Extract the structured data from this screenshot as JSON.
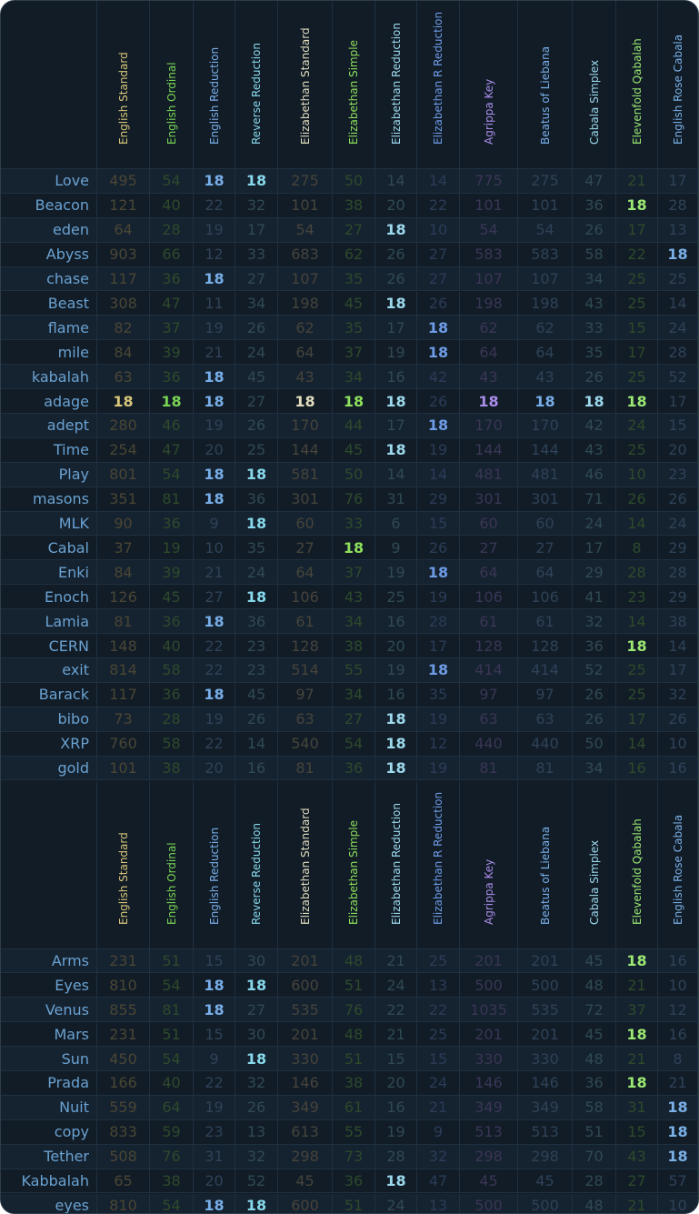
{
  "columns": [
    {
      "name": "English Standard",
      "color": "#d9c67a",
      "dim": "#4a4634"
    },
    {
      "name": "English Ordinal",
      "color": "#79d455",
      "dim": "#2e4a2b"
    },
    {
      "name": "English Reduction",
      "color": "#78aee8",
      "dim": "#2f4257"
    },
    {
      "name": "Reverse Reduction",
      "color": "#86d8ea",
      "dim": "#304a52"
    },
    {
      "name": "Elizabethan Standard",
      "color": "#e2ddbd",
      "dim": "#46443b"
    },
    {
      "name": "Elizabethan Simple",
      "color": "#8ee05c",
      "dim": "#2e4a2b"
    },
    {
      "name": "Elizabethan Reduction",
      "color": "#9cd9ec",
      "dim": "#304a52"
    },
    {
      "name": "Elizabethan R Reduction",
      "color": "#6e9be5",
      "dim": "#2c3c57"
    },
    {
      "name": "Agrippa Key",
      "color": "#a98ce8",
      "dim": "#3a3655"
    },
    {
      "name": "Beatus of Liebana",
      "color": "#78aee8",
      "dim": "#2f4257"
    },
    {
      "name": "Cabala Simplex",
      "color": "#9cd9ec",
      "dim": "#304a52"
    },
    {
      "name": "Elevenfold Qabalah",
      "color": "#9be872",
      "dim": "#2e4a2b"
    },
    {
      "name": "English Rose Cabala",
      "color": "#7ab0e6",
      "dim": "#2f4257"
    }
  ],
  "section1": [
    {
      "word": "Love",
      "values": [
        495,
        54,
        18,
        18,
        275,
        50,
        14,
        14,
        775,
        275,
        47,
        21,
        17
      ]
    },
    {
      "word": "Beacon",
      "values": [
        121,
        40,
        22,
        32,
        101,
        38,
        20,
        22,
        101,
        101,
        36,
        18,
        28
      ]
    },
    {
      "word": "eden",
      "values": [
        64,
        28,
        19,
        17,
        54,
        27,
        18,
        10,
        54,
        54,
        26,
        17,
        13
      ]
    },
    {
      "word": "Abyss",
      "values": [
        903,
        66,
        12,
        33,
        683,
        62,
        26,
        27,
        583,
        583,
        58,
        22,
        18
      ]
    },
    {
      "word": "chase",
      "values": [
        117,
        36,
        18,
        27,
        107,
        35,
        26,
        27,
        107,
        107,
        34,
        25,
        25
      ]
    },
    {
      "word": "Beast",
      "values": [
        308,
        47,
        11,
        34,
        198,
        45,
        18,
        26,
        198,
        198,
        43,
        25,
        14
      ]
    },
    {
      "word": "flame",
      "values": [
        82,
        37,
        19,
        26,
        62,
        35,
        17,
        18,
        62,
        62,
        33,
        15,
        24
      ]
    },
    {
      "word": "mile",
      "values": [
        84,
        39,
        21,
        24,
        64,
        37,
        19,
        18,
        64,
        64,
        35,
        17,
        28
      ]
    },
    {
      "word": "kabalah",
      "values": [
        63,
        36,
        18,
        45,
        43,
        34,
        16,
        42,
        43,
        43,
        26,
        25,
        52
      ]
    },
    {
      "word": "adage",
      "values": [
        18,
        18,
        18,
        27,
        18,
        18,
        18,
        26,
        18,
        18,
        18,
        18,
        17
      ]
    },
    {
      "word": "adept",
      "values": [
        280,
        46,
        19,
        26,
        170,
        44,
        17,
        18,
        170,
        170,
        42,
        24,
        15
      ]
    },
    {
      "word": "Time",
      "values": [
        254,
        47,
        20,
        25,
        144,
        45,
        18,
        19,
        144,
        144,
        43,
        25,
        20
      ]
    },
    {
      "word": "Play",
      "values": [
        801,
        54,
        18,
        18,
        581,
        50,
        14,
        14,
        481,
        481,
        46,
        10,
        23
      ]
    },
    {
      "word": "masons",
      "values": [
        351,
        81,
        18,
        36,
        301,
        76,
        31,
        29,
        301,
        301,
        71,
        26,
        26
      ]
    },
    {
      "word": "MLK",
      "values": [
        90,
        36,
        9,
        18,
        60,
        33,
        6,
        15,
        60,
        60,
        24,
        14,
        24
      ]
    },
    {
      "word": "Cabal",
      "values": [
        37,
        19,
        10,
        35,
        27,
        18,
        9,
        26,
        27,
        27,
        17,
        8,
        29
      ]
    },
    {
      "word": "Enki",
      "values": [
        84,
        39,
        21,
        24,
        64,
        37,
        19,
        18,
        64,
        64,
        29,
        28,
        28
      ]
    },
    {
      "word": "Enoch",
      "values": [
        126,
        45,
        27,
        18,
        106,
        43,
        25,
        19,
        106,
        106,
        41,
        23,
        29
      ]
    },
    {
      "word": "Lamia",
      "values": [
        81,
        36,
        18,
        36,
        61,
        34,
        16,
        28,
        61,
        61,
        32,
        14,
        38
      ]
    },
    {
      "word": "CERN",
      "values": [
        148,
        40,
        22,
        23,
        128,
        38,
        20,
        17,
        128,
        128,
        36,
        18,
        14
      ]
    },
    {
      "word": "exit",
      "values": [
        814,
        58,
        22,
        23,
        514,
        55,
        19,
        18,
        414,
        414,
        52,
        25,
        17
      ]
    },
    {
      "word": "Barack",
      "values": [
        117,
        36,
        18,
        45,
        97,
        34,
        16,
        35,
        97,
        97,
        26,
        25,
        32
      ]
    },
    {
      "word": "bibo",
      "values": [
        73,
        28,
        19,
        26,
        63,
        27,
        18,
        19,
        63,
        63,
        26,
        17,
        26
      ]
    },
    {
      "word": "XRP",
      "values": [
        760,
        58,
        22,
        14,
        540,
        54,
        18,
        12,
        440,
        440,
        50,
        14,
        10
      ]
    },
    {
      "word": "gold",
      "values": [
        101,
        38,
        20,
        16,
        81,
        36,
        18,
        19,
        81,
        81,
        34,
        16,
        16
      ]
    }
  ],
  "section2": [
    {
      "word": "Arms",
      "values": [
        231,
        51,
        15,
        30,
        201,
        48,
        21,
        25,
        201,
        201,
        45,
        18,
        16
      ]
    },
    {
      "word": "Eyes",
      "values": [
        810,
        54,
        18,
        18,
        600,
        51,
        24,
        13,
        500,
        500,
        48,
        21,
        10
      ]
    },
    {
      "word": "Venus",
      "values": [
        855,
        81,
        18,
        27,
        535,
        76,
        22,
        22,
        1035,
        535,
        72,
        37,
        12
      ]
    },
    {
      "word": "Mars",
      "values": [
        231,
        51,
        15,
        30,
        201,
        48,
        21,
        25,
        201,
        201,
        45,
        18,
        16
      ]
    },
    {
      "word": "Sun",
      "values": [
        450,
        54,
        9,
        18,
        330,
        51,
        15,
        15,
        330,
        330,
        48,
        21,
        8
      ]
    },
    {
      "word": "Prada",
      "values": [
        166,
        40,
        22,
        32,
        146,
        38,
        20,
        24,
        146,
        146,
        36,
        18,
        21
      ]
    },
    {
      "word": "Nuit",
      "values": [
        559,
        64,
        19,
        26,
        349,
        61,
        16,
        21,
        349,
        349,
        58,
        31,
        18
      ]
    },
    {
      "word": "copy",
      "values": [
        833,
        59,
        23,
        13,
        613,
        55,
        19,
        9,
        513,
        513,
        51,
        15,
        18
      ]
    },
    {
      "word": "Tether",
      "values": [
        508,
        76,
        31,
        32,
        298,
        73,
        28,
        32,
        298,
        298,
        70,
        43,
        18
      ]
    },
    {
      "word": "Kabbalah",
      "values": [
        65,
        38,
        20,
        52,
        45,
        36,
        18,
        47,
        45,
        45,
        28,
        27,
        57
      ]
    },
    {
      "word": "eyes",
      "values": [
        810,
        54,
        18,
        18,
        600,
        51,
        24,
        13,
        500,
        500,
        48,
        21,
        10
      ]
    }
  ]
}
